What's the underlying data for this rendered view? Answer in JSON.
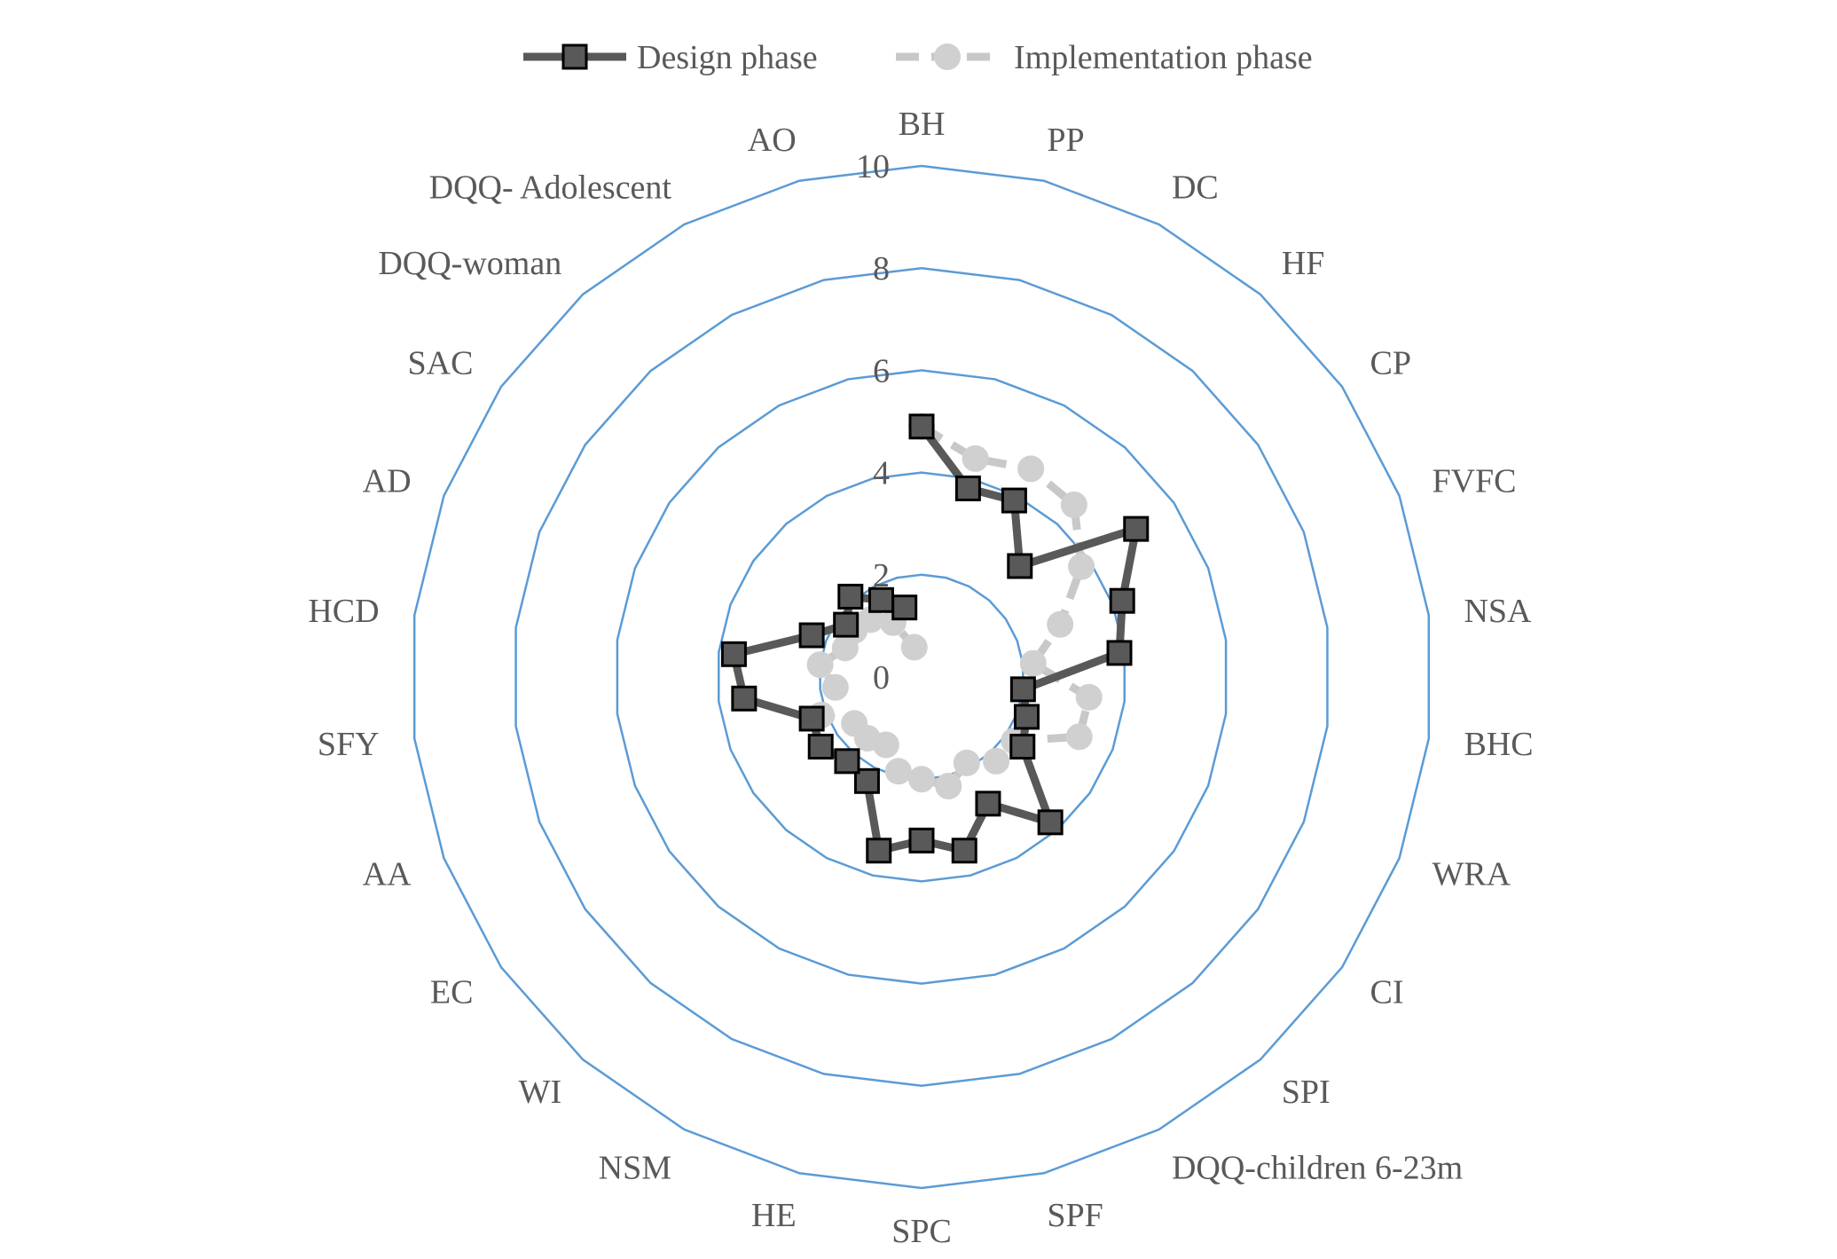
{
  "chart_data": {
    "type": "radar",
    "categories": [
      "BH",
      "PP",
      "DC",
      "HF",
      "CP",
      "FVFC",
      "NSA",
      "BHC",
      "WRA",
      "CI",
      "SPI",
      "DQQ-children 6-23m",
      "SPF",
      "SPC",
      "HE",
      "NSM",
      "WI",
      "EC",
      "AA",
      "SFY",
      "HCD",
      "AD",
      "SAC",
      "DQQ-woman",
      "DQQ- Adolescent",
      "AO"
    ],
    "rlim": [
      0,
      10
    ],
    "ticks": [
      "0",
      "2",
      "4",
      "6",
      "8",
      "10"
    ],
    "tick_values": [
      0,
      2,
      4,
      6,
      8,
      10
    ],
    "grid": true,
    "legend_position": "top",
    "series": [
      {
        "name": "Design phase",
        "values": [
          4.9,
          3.8,
          3.9,
          2.9,
          5.1,
          4.2,
          3.9,
          2.0,
          2.2,
          2.4,
          3.8,
          2.8,
          3.5,
          3.2,
          3.5,
          2.3,
          2.2,
          2.4,
          2.3,
          3.5,
          3.7,
          2.3,
          1.8,
          2.1,
          1.7,
          1.4
        ],
        "color": "#595959",
        "marker": "square",
        "dash": "solid"
      },
      {
        "name": "Implementation phase",
        "values": [
          4.9,
          4.4,
          4.6,
          4.5,
          3.8,
          2.9,
          2.2,
          3.3,
          3.3,
          2.2,
          2.2,
          1.9,
          2.2,
          2.0,
          1.9,
          1.5,
          1.6,
          1.6,
          2.1,
          1.7,
          2.0,
          1.6,
          1.6,
          1.5,
          1.2,
          0.6
        ],
        "color": "#c8c8c8",
        "marker": "circle",
        "dash": "dashed"
      }
    ],
    "gridline_color": "#5b9bd5"
  }
}
